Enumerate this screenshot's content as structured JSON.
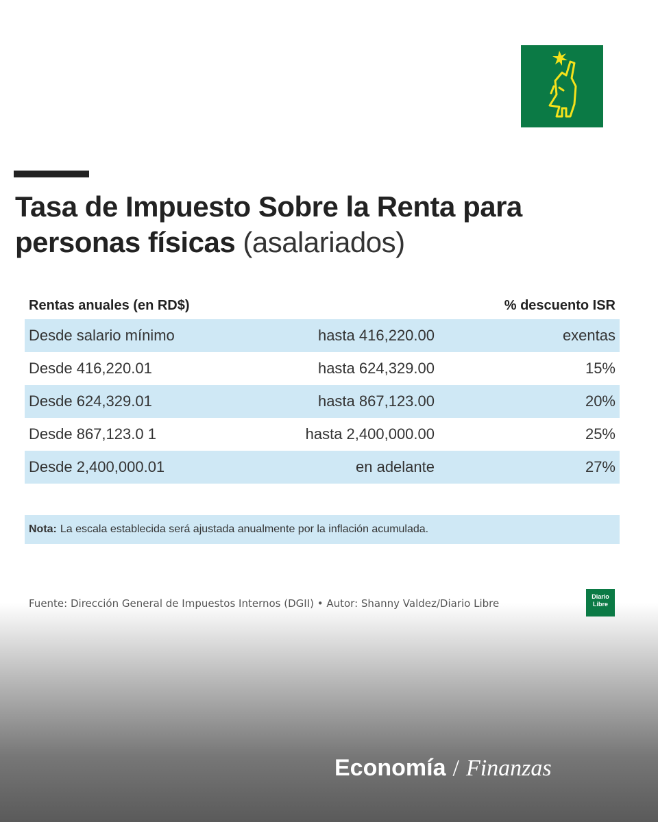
{
  "brand": {
    "logo_icon": "diario-libre-figure-icon",
    "mini_logo_text": "Diario Libre",
    "colors": {
      "green": "#0b7a45",
      "yellow": "#f5e21b",
      "row_shade": "#cfe8f5"
    }
  },
  "title": {
    "bold": "Tasa de Impuesto Sobre la Renta para personas físicas",
    "light": "(asalariados)"
  },
  "table": {
    "header_left": "Rentas anuales (en RD$)",
    "header_right": "% descuento ISR",
    "rows": [
      {
        "from": "Desde salario mínimo",
        "to": "hasta 416,220.00",
        "rate": "exentas"
      },
      {
        "from": "Desde 416,220.01",
        "to": "hasta 624,329.00",
        "rate": "15%"
      },
      {
        "from": "Desde 624,329.01",
        "to": "hasta 867,123.00",
        "rate": "20%"
      },
      {
        "from": "Desde 867,123.0 1",
        "to": "hasta 2,400,000.00",
        "rate": "25%"
      },
      {
        "from": "Desde 2,400,000.01",
        "to": "en adelante",
        "rate": "27%"
      }
    ]
  },
  "note": {
    "label": "Nota:",
    "text": "La escala establecida será ajustada anualmente por la inflación acumulada."
  },
  "source": "Fuente: Dirección General de Impuestos Internos (DGII) • Autor: Shanny Valdez/Diario Libre",
  "section": {
    "bold": "Economía",
    "separator": "/",
    "italic": "Finanzas"
  }
}
